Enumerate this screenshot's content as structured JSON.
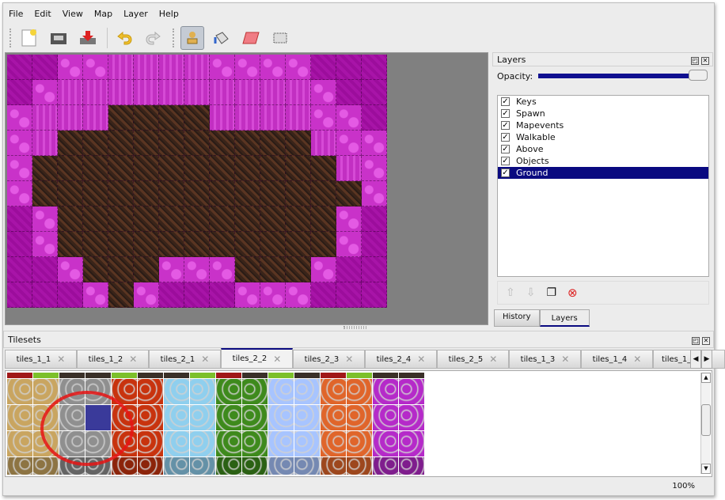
{
  "menu": [
    "File",
    "Edit",
    "View",
    "Map",
    "Layer",
    "Help"
  ],
  "toolbar": {
    "icons": [
      "new-file-icon",
      "open-folder-icon",
      "save-icon",
      "undo-icon",
      "redo-icon",
      "stamp-brush-icon",
      "bucket-fill-icon",
      "eraser-icon",
      "rect-select-icon"
    ],
    "active": "stamp-brush-icon"
  },
  "layers_panel": {
    "title": "Layers",
    "opacity_label": "Opacity:",
    "opacity": 100,
    "layers": [
      {
        "name": "Keys",
        "visible": true
      },
      {
        "name": "Spawn",
        "visible": true
      },
      {
        "name": "Mapevents",
        "visible": true
      },
      {
        "name": "Walkable",
        "visible": true
      },
      {
        "name": "Above",
        "visible": true
      },
      {
        "name": "Objects",
        "visible": true
      },
      {
        "name": "Ground",
        "visible": true,
        "selected": true
      }
    ],
    "bottom_tabs": [
      "History",
      "Layers"
    ],
    "active_tab": "Layers"
  },
  "tilesets": {
    "title": "Tilesets",
    "tabs": [
      "tiles_1_1",
      "tiles_1_2",
      "tiles_2_1",
      "tiles_2_2",
      "tiles_2_3",
      "tiles_2_4",
      "tiles_2_5",
      "tiles_1_3",
      "tiles_1_4",
      "tiles_1_"
    ],
    "active_tab": "tiles_2_2",
    "tile_colors": [
      "#c9a560",
      "#8f8f8f",
      "#c8330e",
      "#8fcfee",
      "#3e8a1c",
      "#a7c4ff",
      "#e0652a",
      "#b52ac9"
    ],
    "selected_tile_color": "#3a3a9a"
  },
  "status": {
    "zoom": "100%"
  }
}
